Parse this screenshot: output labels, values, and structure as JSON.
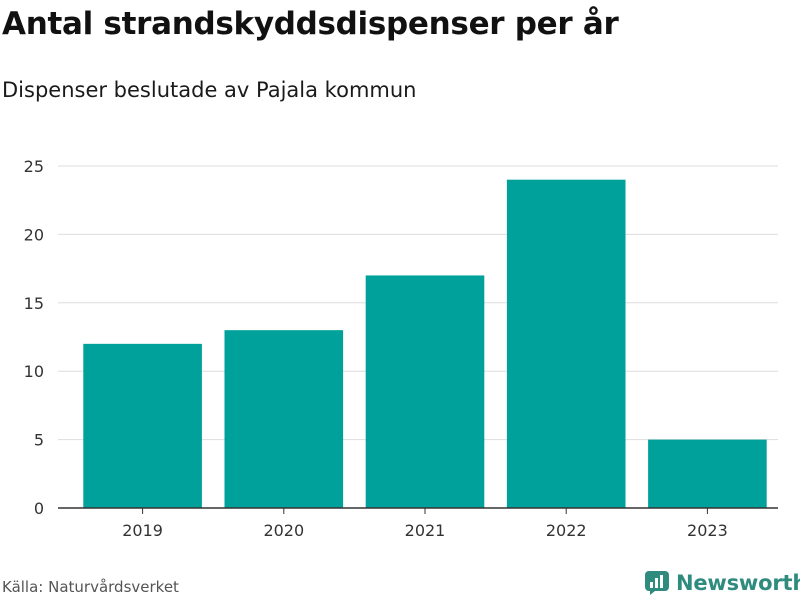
{
  "header": {
    "title": "Antal strandskyddsdispenser per år",
    "subtitle": "Dispenser beslutade av Pajala kommun"
  },
  "footer": {
    "source": "Källa: Naturvårdsverket",
    "brand": "Newsworthy"
  },
  "colors": {
    "bar": "#00a19a",
    "grid": "#dddddd",
    "axis": "#333333",
    "brand": "#2e8b7e"
  },
  "chart_data": {
    "type": "bar",
    "title": "Antal strandskyddsdispenser per år",
    "subtitle": "Dispenser beslutade av Pajala kommun",
    "xlabel": "",
    "ylabel": "",
    "categories": [
      "2019",
      "2020",
      "2021",
      "2022",
      "2023"
    ],
    "values": [
      12,
      13,
      17,
      24,
      5
    ],
    "ylim": [
      0,
      25
    ],
    "yticks": [
      "0",
      "5",
      "10",
      "15",
      "20",
      "25"
    ],
    "grid": true,
    "legend": "none"
  }
}
